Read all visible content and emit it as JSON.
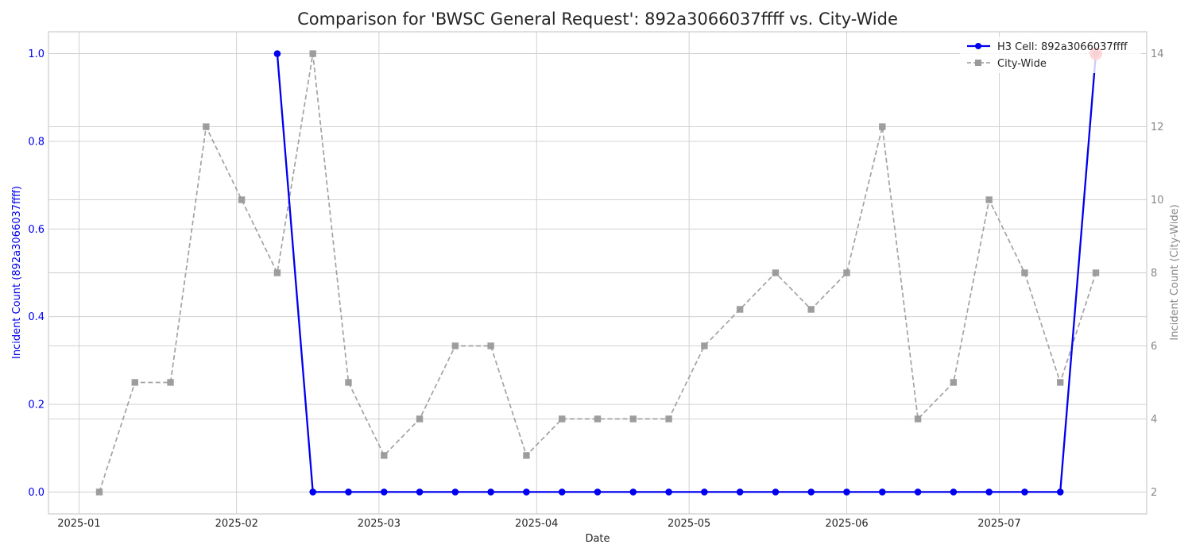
{
  "chart_data": {
    "type": "line",
    "title": "Comparison for 'BWSC General Request': 892a3066037ffff vs. City-Wide",
    "xlabel": "Date",
    "ylabel_left": "Incident Count (892a3066037ffff)",
    "ylabel_right": "Incident Count (City-Wide)",
    "x_ticks": [
      "2025-01",
      "2025-02",
      "2025-03",
      "2025-04",
      "2025-05",
      "2025-06",
      "2025-07"
    ],
    "y_left_ticks": [
      "0.0",
      "0.2",
      "0.4",
      "0.6",
      "0.8",
      "1.0"
    ],
    "y_right_ticks": [
      "2",
      "4",
      "6",
      "8",
      "10",
      "12",
      "14"
    ],
    "xlim": [
      "2024-12-26",
      "2025-07-30"
    ],
    "ylim_left": [
      -0.05,
      1.05
    ],
    "ylim_right": [
      1.4,
      14.6
    ],
    "grid": true,
    "legend_position": "top-right",
    "colors": {
      "h3": "#0000ee",
      "city": "#999999",
      "highlight": "#ff2020"
    },
    "series": [
      {
        "name": "H3 Cell: 892a3066037ffff",
        "axis": "left",
        "style": "solid-circle",
        "x": [
          "2025-02-09",
          "2025-02-16",
          "2025-02-23",
          "2025-03-02",
          "2025-03-09",
          "2025-03-16",
          "2025-03-23",
          "2025-03-30",
          "2025-04-06",
          "2025-04-13",
          "2025-04-20",
          "2025-04-27",
          "2025-05-04",
          "2025-05-11",
          "2025-05-18",
          "2025-05-25",
          "2025-06-01",
          "2025-06-08",
          "2025-06-15",
          "2025-06-22",
          "2025-06-29",
          "2025-07-06",
          "2025-07-13",
          "2025-07-20"
        ],
        "values": [
          1,
          0,
          0,
          0,
          0,
          0,
          0,
          0,
          0,
          0,
          0,
          0,
          0,
          0,
          0,
          0,
          0,
          0,
          0,
          0,
          0,
          0,
          0,
          1
        ]
      },
      {
        "name": "City-Wide",
        "axis": "right",
        "style": "dashed-square",
        "x": [
          "2025-01-05",
          "2025-01-12",
          "2025-01-19",
          "2025-01-26",
          "2025-02-02",
          "2025-02-09",
          "2025-02-16",
          "2025-02-23",
          "2025-03-02",
          "2025-03-09",
          "2025-03-16",
          "2025-03-23",
          "2025-03-30",
          "2025-04-06",
          "2025-04-13",
          "2025-04-20",
          "2025-04-27",
          "2025-05-04",
          "2025-05-11",
          "2025-05-18",
          "2025-05-25",
          "2025-06-01",
          "2025-06-08",
          "2025-06-15",
          "2025-06-22",
          "2025-06-29",
          "2025-07-06",
          "2025-07-13",
          "2025-07-20"
        ],
        "values": [
          2,
          5,
          5,
          12,
          10,
          8,
          14,
          5,
          3,
          4,
          6,
          6,
          3,
          4,
          4,
          4,
          4,
          6,
          7,
          8,
          7,
          8,
          12,
          4,
          5,
          10,
          8,
          5,
          8
        ]
      }
    ],
    "highlight": {
      "series": "H3 Cell: 892a3066037ffff",
      "x": "2025-07-20",
      "value": 1
    }
  }
}
